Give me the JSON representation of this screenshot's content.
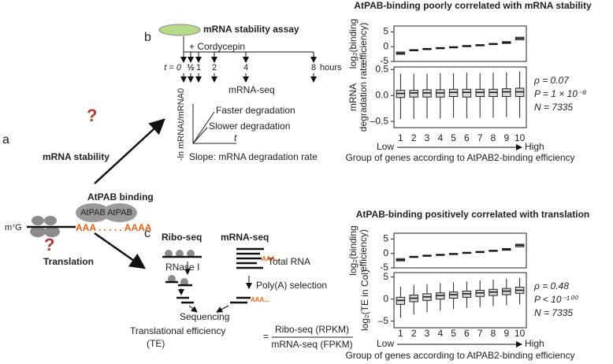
{
  "figure": {
    "panel_a": {
      "label": "a",
      "stability_label": "mRNA stability",
      "translation_label": "Translation",
      "question": "?",
      "binding_label": "AtPAB binding",
      "cap": "m⁷G",
      "pab": "AtPAB",
      "polya": "AAA . . . . . AAAA"
    },
    "panel_b": {
      "label": "b",
      "title": "mRNA stability assay",
      "treatment": "+ Cordycepin",
      "t0": "t = 0",
      "times": [
        "½",
        "1",
        "2",
        "4",
        "8"
      ],
      "unit": "hours",
      "assay": "mRNA-seq",
      "y_label": "-ln mRNAt/mRNA0",
      "x_label": "t",
      "fast": "Faster degradation",
      "slow": "Slower degradation",
      "slope": "Slope: mRNA degradation rate"
    },
    "panel_c": {
      "label": "c",
      "ribo": "Ribo-seq",
      "mrna": "mRNA-seq",
      "total": "Total RNA",
      "rnase": "RNase I",
      "polya_sel": "Poly(A) selection",
      "seq": "Sequencing",
      "polya_small": "AAA...",
      "te": "Translational efficiency",
      "te_abbr": "(TE)",
      "eq": "=",
      "num": "Ribo-seq (RPKM)",
      "den": "mRNA-seq (FPKM)"
    }
  },
  "chart_data": [
    {
      "type": "box",
      "title": "AtPAB-binding poorly correlated with mRNA stability",
      "ylabel": [
        "log₂(binding",
        "efficiency)"
      ],
      "ylim": [
        -5,
        7
      ],
      "yticks": [
        -5,
        0,
        5
      ],
      "color": "#d9d9d9",
      "q1": [
        -2.6,
        -1.4,
        -1.0,
        -0.7,
        -0.4,
        0.0,
        0.3,
        0.7,
        1.1,
        2.3
      ],
      "median": [
        -2.2,
        -1.2,
        -0.8,
        -0.5,
        -0.2,
        0.2,
        0.5,
        0.9,
        1.4,
        2.8
      ],
      "q3": [
        -1.8,
        -1.0,
        -0.6,
        -0.3,
        0.0,
        0.4,
        0.7,
        1.1,
        1.7,
        3.2
      ]
    },
    {
      "type": "box",
      "ylabel": [
        "mRNA",
        "degradation rate"
      ],
      "ylim": [
        -0.62,
        0.55
      ],
      "yticks": [
        {
          "value": -0.5,
          "label": "–0.5"
        },
        {
          "value": 0,
          "label": "0.0"
        },
        0.5
      ],
      "color": "#d9d9d9",
      "categories": [
        "1",
        "2",
        "3",
        "4",
        "5",
        "6",
        "7",
        "8",
        "9",
        "10"
      ],
      "whisker_low": [
        -0.45,
        -0.45,
        -0.44,
        -0.44,
        -0.43,
        -0.44,
        -0.43,
        -0.43,
        -0.42,
        -0.43
      ],
      "q1": [
        -0.04,
        -0.03,
        -0.03,
        -0.03,
        -0.02,
        -0.03,
        -0.02,
        -0.02,
        -0.02,
        -0.02
      ],
      "median": [
        0.04,
        0.05,
        0.05,
        0.05,
        0.06,
        0.06,
        0.06,
        0.06,
        0.07,
        0.07
      ],
      "q3": [
        0.1,
        0.1,
        0.11,
        0.11,
        0.12,
        0.12,
        0.12,
        0.12,
        0.13,
        0.14
      ],
      "whisker_high": [
        0.42,
        0.42,
        0.42,
        0.43,
        0.43,
        0.44,
        0.43,
        0.44,
        0.45,
        0.46
      ],
      "annotations": [
        "ρ = 0.07",
        "P = 1 × 10⁻⁸",
        "N = 7335"
      ],
      "x_low": "Low",
      "x_high": "High",
      "xlabel": "Group of genes according to AtPAB2-binding efficiency"
    },
    {
      "type": "box",
      "title": "AtPAB-binding positively correlated with translation",
      "ylabel": [
        "log₂(binding",
        "efficiency)"
      ],
      "ylim": [
        -5,
        7
      ],
      "yticks": [
        -5,
        0,
        5
      ],
      "color": "#d9d9d9",
      "q1": [
        -2.6,
        -1.4,
        -1.0,
        -0.7,
        -0.4,
        0.0,
        0.3,
        0.7,
        1.1,
        2.3
      ],
      "median": [
        -2.2,
        -1.2,
        -0.8,
        -0.5,
        -0.2,
        0.2,
        0.5,
        0.9,
        1.4,
        2.8
      ],
      "q3": [
        -1.8,
        -1.0,
        -0.6,
        -0.3,
        0.0,
        0.4,
        0.7,
        1.1,
        1.7,
        3.2
      ]
    },
    {
      "type": "box",
      "ylabel": [
        "log₂(TE in Col)"
      ],
      "ylim": [
        -6.5,
        6
      ],
      "yticks": [
        {
          "value": -5,
          "label": "–5"
        },
        0,
        5
      ],
      "color": "#d9d9d9",
      "categories": [
        "1",
        "2",
        "3",
        "4",
        "5",
        "6",
        "7",
        "8",
        "9",
        "10"
      ],
      "whisker_low": [
        -4.2,
        -3.5,
        -3.0,
        -2.6,
        -2.3,
        -2.0,
        -1.8,
        -1.6,
        -1.4,
        -1.2
      ],
      "q1": [
        -1.2,
        -0.6,
        -0.3,
        0.0,
        0.2,
        0.4,
        0.6,
        0.8,
        1.0,
        1.3
      ],
      "median": [
        -0.3,
        0.2,
        0.5,
        0.8,
        1.0,
        1.2,
        1.4,
        1.6,
        1.8,
        2.0
      ],
      "q3": [
        0.4,
        0.9,
        1.2,
        1.4,
        1.6,
        1.8,
        2.0,
        2.2,
        2.4,
        2.7
      ],
      "whisker_high": [
        2.8,
        3.2,
        3.4,
        3.6,
        3.8,
        4.0,
        4.2,
        4.4,
        4.6,
        4.8
      ],
      "annotations": [
        "ρ = 0.48",
        "P < 10⁻¹⁰⁰",
        "N = 7335"
      ],
      "x_low": "Low",
      "x_high": "High",
      "xlabel": "Group of genes according to AtPAB2-binding efficiency"
    }
  ]
}
